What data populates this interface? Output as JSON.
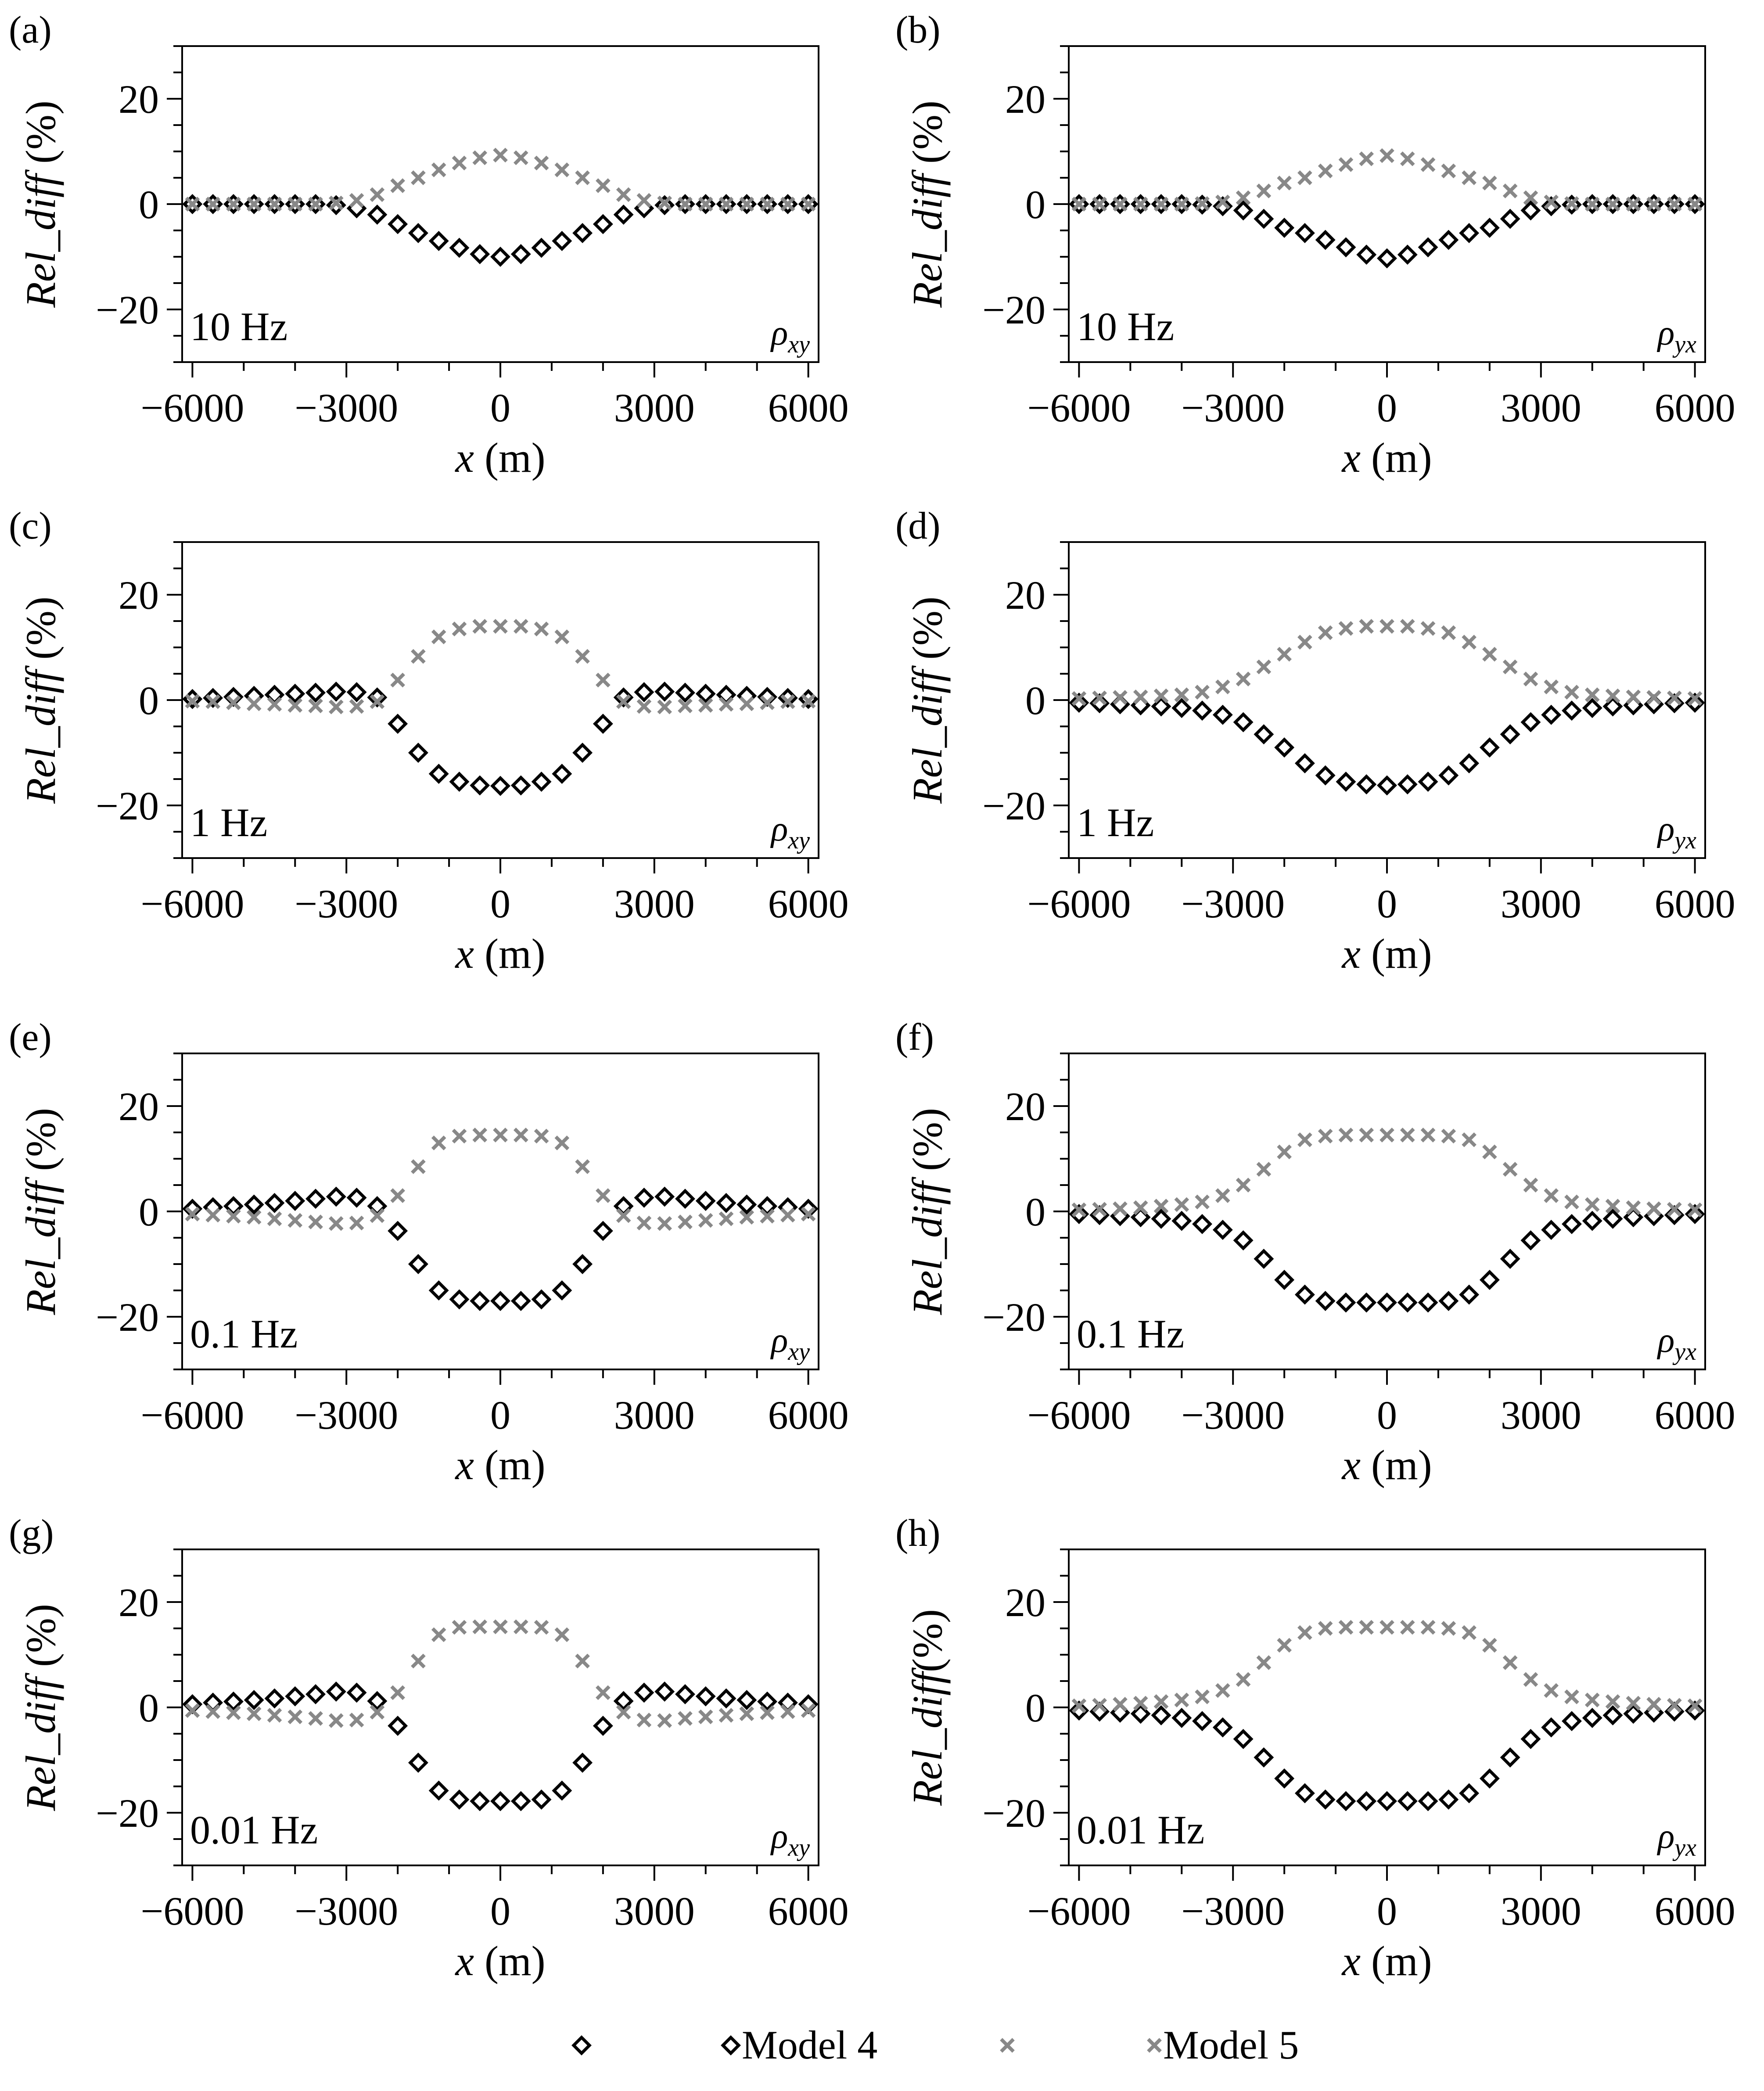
{
  "chart_data": [
    {
      "panel": "(a)",
      "type": "scatter",
      "frequency_label": "10 Hz",
      "component": {
        "symbol": "ρ",
        "subscript": "xy"
      },
      "xlabel_var": "x",
      "xlabel_unit": " (m)",
      "ylabel_var": "Rel_diff",
      "ylabel_unit": " (%)",
      "xlim": [
        -6200,
        6200
      ],
      "ylim": [
        -30,
        30
      ],
      "xticks": [
        -6000,
        -3000,
        0,
        3000,
        6000
      ],
      "xtick_labels": [
        "−6000",
        "−3000",
        "0",
        "3000",
        "6000"
      ],
      "yticks": [
        -20,
        0,
        20
      ],
      "ytick_labels": [
        "−20",
        "0",
        "20"
      ],
      "x": [
        -6000,
        -5600,
        -5200,
        -4800,
        -4400,
        -4000,
        -3600,
        -3200,
        -2800,
        -2400,
        -2000,
        -1600,
        -1200,
        -800,
        -400,
        0,
        400,
        800,
        1200,
        1600,
        2000,
        2400,
        2800,
        3200,
        3600,
        4000,
        4400,
        4800,
        5200,
        5600,
        6000
      ],
      "series": [
        {
          "name": "Model 4",
          "values": [
            0,
            0,
            0,
            0,
            0,
            0,
            0,
            -0.2,
            -0.8,
            -2,
            -3.8,
            -5.5,
            -7,
            -8.3,
            -9.5,
            -10,
            -9.5,
            -8.3,
            -7,
            -5.5,
            -3.8,
            -2,
            -0.8,
            -0.2,
            0,
            0,
            0,
            0,
            0,
            0,
            0
          ]
        },
        {
          "name": "Model 5",
          "values": [
            0,
            0,
            0,
            0,
            0,
            0,
            0,
            0.2,
            0.7,
            1.8,
            3.5,
            5,
            6.5,
            7.8,
            8.8,
            9.3,
            8.8,
            7.8,
            6.5,
            5,
            3.5,
            1.8,
            0.7,
            0.2,
            0,
            0,
            0,
            0,
            0,
            0,
            0
          ]
        }
      ]
    },
    {
      "panel": "(b)",
      "type": "scatter",
      "frequency_label": "10 Hz",
      "component": {
        "symbol": "ρ",
        "subscript": "yx"
      },
      "xlabel_var": "x",
      "xlabel_unit": " (m)",
      "ylabel_var": "Rel_diff",
      "ylabel_unit": " (%)",
      "xlim": [
        -6200,
        6200
      ],
      "ylim": [
        -30,
        30
      ],
      "xticks": [
        -6000,
        -3000,
        0,
        3000,
        6000
      ],
      "xtick_labels": [
        "−6000",
        "−3000",
        "0",
        "3000",
        "6000"
      ],
      "yticks": [
        -20,
        0,
        20
      ],
      "ytick_labels": [
        "−20",
        "0",
        "20"
      ],
      "x": [
        -6000,
        -5600,
        -5200,
        -4800,
        -4400,
        -4000,
        -3600,
        -3200,
        -2800,
        -2400,
        -2000,
        -1600,
        -1200,
        -800,
        -400,
        0,
        400,
        800,
        1200,
        1600,
        2000,
        2400,
        2800,
        3200,
        3600,
        4000,
        4400,
        4800,
        5200,
        5600,
        6000
      ],
      "series": [
        {
          "name": "Model 4",
          "values": [
            0,
            0,
            0,
            0,
            0,
            0,
            -0.1,
            -0.4,
            -1.2,
            -2.8,
            -4.5,
            -5.5,
            -6.8,
            -8.2,
            -9.6,
            -10.3,
            -9.6,
            -8.2,
            -6.8,
            -5.5,
            -4.5,
            -2.8,
            -1.2,
            -0.4,
            -0.1,
            0,
            0,
            0,
            0,
            0,
            0
          ]
        },
        {
          "name": "Model 5",
          "values": [
            0,
            0,
            0,
            0,
            0,
            0,
            0.1,
            0.4,
            1.2,
            2.5,
            4,
            5,
            6.3,
            7.5,
            8.6,
            9.2,
            8.6,
            7.5,
            6.3,
            5,
            4,
            2.5,
            1.2,
            0.4,
            0.1,
            0,
            0,
            0,
            0,
            0,
            0
          ]
        }
      ]
    },
    {
      "panel": "(c)",
      "type": "scatter",
      "frequency_label": "1 Hz",
      "component": {
        "symbol": "ρ",
        "subscript": "xy"
      },
      "xlabel_var": "x",
      "xlabel_unit": " (m)",
      "ylabel_var": "Rel_diff",
      "ylabel_unit": " (%)",
      "xlim": [
        -6200,
        6200
      ],
      "ylim": [
        -30,
        30
      ],
      "xticks": [
        -6000,
        -3000,
        0,
        3000,
        6000
      ],
      "xtick_labels": [
        "−6000",
        "−3000",
        "0",
        "3000",
        "6000"
      ],
      "yticks": [
        -20,
        0,
        20
      ],
      "ytick_labels": [
        "−20",
        "0",
        "20"
      ],
      "x": [
        -6000,
        -5600,
        -5200,
        -4800,
        -4400,
        -4000,
        -3600,
        -3200,
        -2800,
        -2400,
        -2000,
        -1600,
        -1200,
        -800,
        -400,
        0,
        400,
        800,
        1200,
        1600,
        2000,
        2400,
        2800,
        3200,
        3600,
        4000,
        4400,
        4800,
        5200,
        5600,
        6000
      ],
      "series": [
        {
          "name": "Model 4",
          "values": [
            0.2,
            0.4,
            0.6,
            0.8,
            1,
            1.2,
            1.4,
            1.6,
            1.5,
            0.5,
            -4.5,
            -10,
            -14,
            -15.5,
            -16.2,
            -16.3,
            -16.2,
            -15.5,
            -14,
            -10,
            -4.5,
            0.5,
            1.5,
            1.6,
            1.4,
            1.2,
            1,
            0.8,
            0.6,
            0.4,
            0.2
          ]
        },
        {
          "name": "Model 5",
          "values": [
            -0.2,
            -0.3,
            -0.5,
            -0.7,
            -0.8,
            -1,
            -1.1,
            -1.3,
            -1.2,
            -0.3,
            3.8,
            8.3,
            12,
            13.5,
            14,
            14,
            14,
            13.5,
            12,
            8.3,
            3.8,
            -0.3,
            -1.2,
            -1.3,
            -1.1,
            -1,
            -0.8,
            -0.7,
            -0.5,
            -0.3,
            -0.2
          ]
        }
      ]
    },
    {
      "panel": "(d)",
      "type": "scatter",
      "frequency_label": "1 Hz",
      "component": {
        "symbol": "ρ",
        "subscript": "yx"
      },
      "xlabel_var": "x",
      "xlabel_unit": " (m)",
      "ylabel_var": "Rel_diff",
      "ylabel_unit": " (%)",
      "xlim": [
        -6200,
        6200
      ],
      "ylim": [
        -30,
        30
      ],
      "xticks": [
        -6000,
        -3000,
        0,
        3000,
        6000
      ],
      "xtick_labels": [
        "−6000",
        "−3000",
        "0",
        "3000",
        "6000"
      ],
      "yticks": [
        -20,
        0,
        20
      ],
      "ytick_labels": [
        "−20",
        "0",
        "20"
      ],
      "x": [
        -6000,
        -5600,
        -5200,
        -4800,
        -4400,
        -4000,
        -3600,
        -3200,
        -2800,
        -2400,
        -2000,
        -1600,
        -1200,
        -800,
        -400,
        0,
        400,
        800,
        1200,
        1600,
        2000,
        2400,
        2800,
        3200,
        3600,
        4000,
        4400,
        4800,
        5200,
        5600,
        6000
      ],
      "series": [
        {
          "name": "Model 4",
          "values": [
            -0.5,
            -0.6,
            -0.8,
            -1,
            -1.2,
            -1.5,
            -2,
            -2.8,
            -4.2,
            -6.5,
            -9,
            -12,
            -14.3,
            -15.5,
            -16,
            -16.2,
            -16,
            -15.5,
            -14.3,
            -12,
            -9,
            -6.5,
            -4.2,
            -2.8,
            -2,
            -1.5,
            -1.2,
            -1,
            -0.8,
            -0.6,
            -0.5
          ]
        },
        {
          "name": "Model 5",
          "values": [
            0.3,
            0.4,
            0.5,
            0.6,
            0.8,
            1,
            1.5,
            2.5,
            4,
            6.3,
            8.7,
            11,
            12.8,
            13.6,
            14,
            14,
            14,
            13.6,
            12.8,
            11,
            8.7,
            6.3,
            4,
            2.5,
            1.5,
            1,
            0.8,
            0.6,
            0.5,
            0.4,
            0.3
          ]
        }
      ]
    },
    {
      "panel": "(e)",
      "type": "scatter",
      "frequency_label": "0.1 Hz",
      "component": {
        "symbol": "ρ",
        "subscript": "xy"
      },
      "xlabel_var": "x",
      "xlabel_unit": " (m)",
      "ylabel_var": "Rel_diff",
      "ylabel_unit": " (%)",
      "xlim": [
        -6200,
        6200
      ],
      "ylim": [
        -30,
        30
      ],
      "xticks": [
        -6000,
        -3000,
        0,
        3000,
        6000
      ],
      "xtick_labels": [
        "−6000",
        "−3000",
        "0",
        "3000",
        "6000"
      ],
      "yticks": [
        -20,
        0,
        20
      ],
      "ytick_labels": [
        "−20",
        "0",
        "20"
      ],
      "x": [
        -6000,
        -5600,
        -5200,
        -4800,
        -4400,
        -4000,
        -3600,
        -3200,
        -2800,
        -2400,
        -2000,
        -1600,
        -1200,
        -800,
        -400,
        0,
        400,
        800,
        1200,
        1600,
        2000,
        2400,
        2800,
        3200,
        3600,
        4000,
        4400,
        4800,
        5200,
        5600,
        6000
      ],
      "series": [
        {
          "name": "Model 4",
          "values": [
            0.5,
            0.8,
            1,
            1.3,
            1.6,
            2,
            2.4,
            2.8,
            2.6,
            1,
            -3.7,
            -10,
            -15,
            -16.7,
            -17,
            -17,
            -17,
            -16.7,
            -15,
            -10,
            -3.7,
            1,
            2.6,
            2.8,
            2.4,
            2,
            1.6,
            1.3,
            1,
            0.8,
            0.5
          ]
        },
        {
          "name": "Model 5",
          "values": [
            -0.5,
            -0.7,
            -0.9,
            -1.1,
            -1.4,
            -1.7,
            -2,
            -2.3,
            -2.2,
            -0.8,
            3,
            8.5,
            13,
            14.3,
            14.5,
            14.5,
            14.5,
            14.3,
            13,
            8.5,
            3,
            -0.8,
            -2.2,
            -2.3,
            -2,
            -1.7,
            -1.4,
            -1.1,
            -0.9,
            -0.7,
            -0.5
          ]
        }
      ]
    },
    {
      "panel": "(f)",
      "type": "scatter",
      "frequency_label": "0.1 Hz",
      "component": {
        "symbol": "ρ",
        "subscript": "yx"
      },
      "xlabel_var": "x",
      "xlabel_unit": " (m)",
      "ylabel_var": "Rel_diff",
      "ylabel_unit": " (%)",
      "xlim": [
        -6200,
        6200
      ],
      "ylim": [
        -30,
        30
      ],
      "xticks": [
        -6000,
        -3000,
        0,
        3000,
        6000
      ],
      "xtick_labels": [
        "−6000",
        "−3000",
        "0",
        "3000",
        "6000"
      ],
      "yticks": [
        -20,
        0,
        20
      ],
      "ytick_labels": [
        "−20",
        "0",
        "20"
      ],
      "x": [
        -6000,
        -5600,
        -5200,
        -4800,
        -4400,
        -4000,
        -3600,
        -3200,
        -2800,
        -2400,
        -2000,
        -1600,
        -1200,
        -800,
        -400,
        0,
        400,
        800,
        1200,
        1600,
        2000,
        2400,
        2800,
        3200,
        3600,
        4000,
        4400,
        4800,
        5200,
        5600,
        6000
      ],
      "series": [
        {
          "name": "Model 4",
          "values": [
            -0.5,
            -0.7,
            -0.9,
            -1.1,
            -1.4,
            -1.8,
            -2.4,
            -3.5,
            -5.5,
            -9,
            -13,
            -15.8,
            -17,
            -17.3,
            -17.3,
            -17.3,
            -17.3,
            -17.3,
            -17,
            -15.8,
            -13,
            -9,
            -5.5,
            -3.5,
            -2.4,
            -1.8,
            -1.4,
            -1.1,
            -0.9,
            -0.7,
            -0.5
          ]
        },
        {
          "name": "Model 5",
          "values": [
            0.3,
            0.4,
            0.5,
            0.7,
            1,
            1.3,
            1.8,
            3,
            5,
            8,
            11.3,
            13.6,
            14.3,
            14.5,
            14.5,
            14.5,
            14.5,
            14.5,
            14.3,
            13.6,
            11.3,
            8,
            5,
            3,
            1.8,
            1.3,
            1,
            0.7,
            0.5,
            0.4,
            0.3
          ]
        }
      ]
    },
    {
      "panel": "(g)",
      "type": "scatter",
      "frequency_label": "0.01 Hz",
      "component": {
        "symbol": "ρ",
        "subscript": "xy"
      },
      "xlabel_var": "x",
      "xlabel_unit": " (m)",
      "ylabel_var": "Rel_diff",
      "ylabel_unit": " (%)",
      "xlim": [
        -6200,
        6200
      ],
      "ylim": [
        -30,
        30
      ],
      "xticks": [
        -6000,
        -3000,
        0,
        3000,
        6000
      ],
      "xtick_labels": [
        "−6000",
        "−3000",
        "0",
        "3000",
        "6000"
      ],
      "yticks": [
        -20,
        0,
        20
      ],
      "ytick_labels": [
        "−20",
        "0",
        "20"
      ],
      "x": [
        -6000,
        -5600,
        -5200,
        -4800,
        -4400,
        -4000,
        -3600,
        -3200,
        -2800,
        -2400,
        -2000,
        -1600,
        -1200,
        -800,
        -400,
        0,
        400,
        800,
        1200,
        1600,
        2000,
        2400,
        2800,
        3200,
        3600,
        4000,
        4400,
        4800,
        5200,
        5600,
        6000
      ],
      "series": [
        {
          "name": "Model 4",
          "values": [
            0.6,
            0.9,
            1.1,
            1.4,
            1.7,
            2.1,
            2.5,
            3,
            2.8,
            1.2,
            -3.5,
            -10.5,
            -15.8,
            -17.5,
            -17.8,
            -17.8,
            -17.8,
            -17.5,
            -15.8,
            -10.5,
            -3.5,
            1.2,
            2.8,
            3,
            2.5,
            2.1,
            1.7,
            1.4,
            1.1,
            0.9,
            0.6
          ]
        },
        {
          "name": "Model 5",
          "values": [
            -0.6,
            -0.8,
            -1,
            -1.2,
            -1.5,
            -1.8,
            -2.1,
            -2.5,
            -2.4,
            -0.9,
            2.8,
            8.8,
            13.8,
            15.2,
            15.3,
            15.3,
            15.3,
            15.2,
            13.8,
            8.8,
            2.8,
            -0.9,
            -2.4,
            -2.5,
            -2.1,
            -1.8,
            -1.5,
            -1.2,
            -1,
            -0.8,
            -0.6
          ]
        }
      ]
    },
    {
      "panel": "(h)",
      "type": "scatter",
      "frequency_label": "0.01 Hz",
      "component": {
        "symbol": "ρ",
        "subscript": "yx"
      },
      "xlabel_var": "x",
      "xlabel_unit": " (m)",
      "ylabel_var": "Rel_diff",
      "ylabel_unit": "(%)",
      "xlim": [
        -6200,
        6200
      ],
      "ylim": [
        -30,
        30
      ],
      "xticks": [
        -6000,
        -3000,
        0,
        3000,
        6000
      ],
      "xtick_labels": [
        "−6000",
        "−3000",
        "0",
        "3000",
        "6000"
      ],
      "yticks": [
        -20,
        0,
        20
      ],
      "ytick_labels": [
        "−20",
        "0",
        "20"
      ],
      "x": [
        -6000,
        -5600,
        -5200,
        -4800,
        -4400,
        -4000,
        -3600,
        -3200,
        -2800,
        -2400,
        -2000,
        -1600,
        -1200,
        -800,
        -400,
        0,
        400,
        800,
        1200,
        1600,
        2000,
        2400,
        2800,
        3200,
        3600,
        4000,
        4400,
        4800,
        5200,
        5600,
        6000
      ],
      "series": [
        {
          "name": "Model 4",
          "values": [
            -0.6,
            -0.8,
            -1,
            -1.2,
            -1.5,
            -2,
            -2.6,
            -3.8,
            -6,
            -9.5,
            -13.5,
            -16.3,
            -17.5,
            -17.8,
            -17.8,
            -17.8,
            -17.8,
            -17.8,
            -17.5,
            -16.3,
            -13.5,
            -9.5,
            -6,
            -3.8,
            -2.6,
            -2,
            -1.5,
            -1.2,
            -1,
            -0.8,
            -0.6
          ]
        },
        {
          "name": "Model 5",
          "values": [
            0.3,
            0.4,
            0.6,
            0.8,
            1.1,
            1.4,
            2,
            3.2,
            5.3,
            8.5,
            11.8,
            14.2,
            15,
            15.2,
            15.2,
            15.2,
            15.2,
            15.2,
            15,
            14.2,
            11.8,
            8.5,
            5.3,
            3.2,
            2,
            1.4,
            1.1,
            0.8,
            0.6,
            0.4,
            0.3
          ]
        }
      ]
    }
  ],
  "legend": {
    "items": [
      {
        "name": "Model 4",
        "label": " Model 4",
        "marker": "diamond",
        "color": "#000000"
      },
      {
        "name": "Model 5",
        "label": " Model 5",
        "marker": "cross",
        "color": "#888888"
      }
    ]
  },
  "colors": {
    "model4": "#000000",
    "model5": "#888888",
    "axis": "#000000"
  }
}
